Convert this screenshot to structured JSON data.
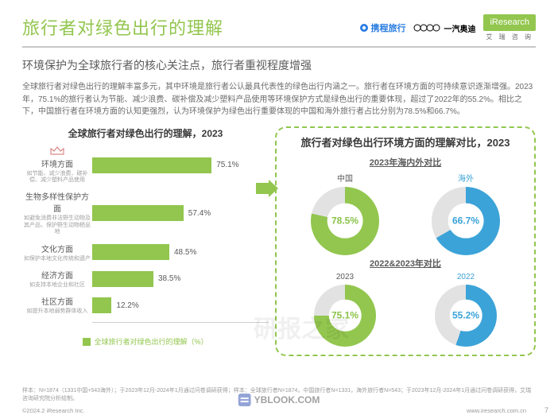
{
  "header": {
    "title": "旅行者对绿色出行的理解",
    "logos": {
      "ctrip": "携程旅行",
      "audi": "一汽奥迪",
      "iresearch": "iResearch",
      "iresearch_sub": "艾 瑞 咨 询"
    }
  },
  "subtitle": "环境保护为全球旅行者的核心关注点，旅行者重视程度增强",
  "body": "全球旅行者对绿色出行的理解丰富多元，其中环境是旅行者公认最具代表性的绿色出行内涵之一。旅行者在环境方面的可持续意识逐渐增强。2023年，75.1%的旅行者认为节能、减少浪费、碳补偿及减少塑料产品使用等环境保护方式是绿色出行的重要体现，超过了2022年的55.2%。相比之下，中国旅行者在环境方面的认知更强烈，认为环境保护为绿色出行重要体现的中国和海外旅行者占比分别为78.5%和66.7%。",
  "bar_chart": {
    "title": "全球旅行者对绿色出行的理解，2023",
    "legend": "全球旅行者对绿色出行的理解（%）",
    "bar_color": "#92c64e",
    "max": 100,
    "items": [
      {
        "label": "环境方面",
        "sub": "如节能、减少浪费、碳补偿、减少塑料产品使用",
        "value": 75.1,
        "highlight": true
      },
      {
        "label": "生物多样性保护方面",
        "sub": "如避免消费非法野生动物及其产品，保护野生动物栖息地",
        "value": 57.4
      },
      {
        "label": "文化方面",
        "sub": "如保护本地文化传统和遗产",
        "value": 48.5
      },
      {
        "label": "经济方面",
        "sub": "如支持本地企业和社区",
        "value": 38.5
      },
      {
        "label": "社区方面",
        "sub": "如提升本地弱势群体收入",
        "value": 12.2
      }
    ]
  },
  "right_panel": {
    "title": "旅行者对绿色出行环境方面的理解对比，2023",
    "section1_title": "2023年海内外对比",
    "section2_title": "2022&2023年对比",
    "colors": {
      "primary": "#92c64e",
      "secondary": "#3ba3d8",
      "ring_bg": "#e2e2e2"
    },
    "row1": [
      {
        "label": "中国",
        "value": 78.5,
        "color": "green"
      },
      {
        "label": "海外",
        "value": 66.7,
        "color": "blue"
      }
    ],
    "row2": [
      {
        "label": "2023",
        "value": 75.1,
        "color": "green"
      },
      {
        "label": "2022",
        "value": 55.2,
        "color": "blue"
      }
    ]
  },
  "footer": {
    "note": "样本：N=1874（1331中国+543海外）；于2023年12月-2024年1月通过问卷调研获得；样本：全球旅行者N=1874，中国旅行者N=1331，海外旅行者N=543；于2023年12月-2024年1月通过问卷调研获得，艾瑞咨询研究院分析绘制。",
    "copyright": "©2024.2 iResearch Inc.",
    "site": "www.iresearch.com.cn",
    "page": "7",
    "watermark": "研报之家",
    "yblook": "YBLOOK.COM"
  }
}
